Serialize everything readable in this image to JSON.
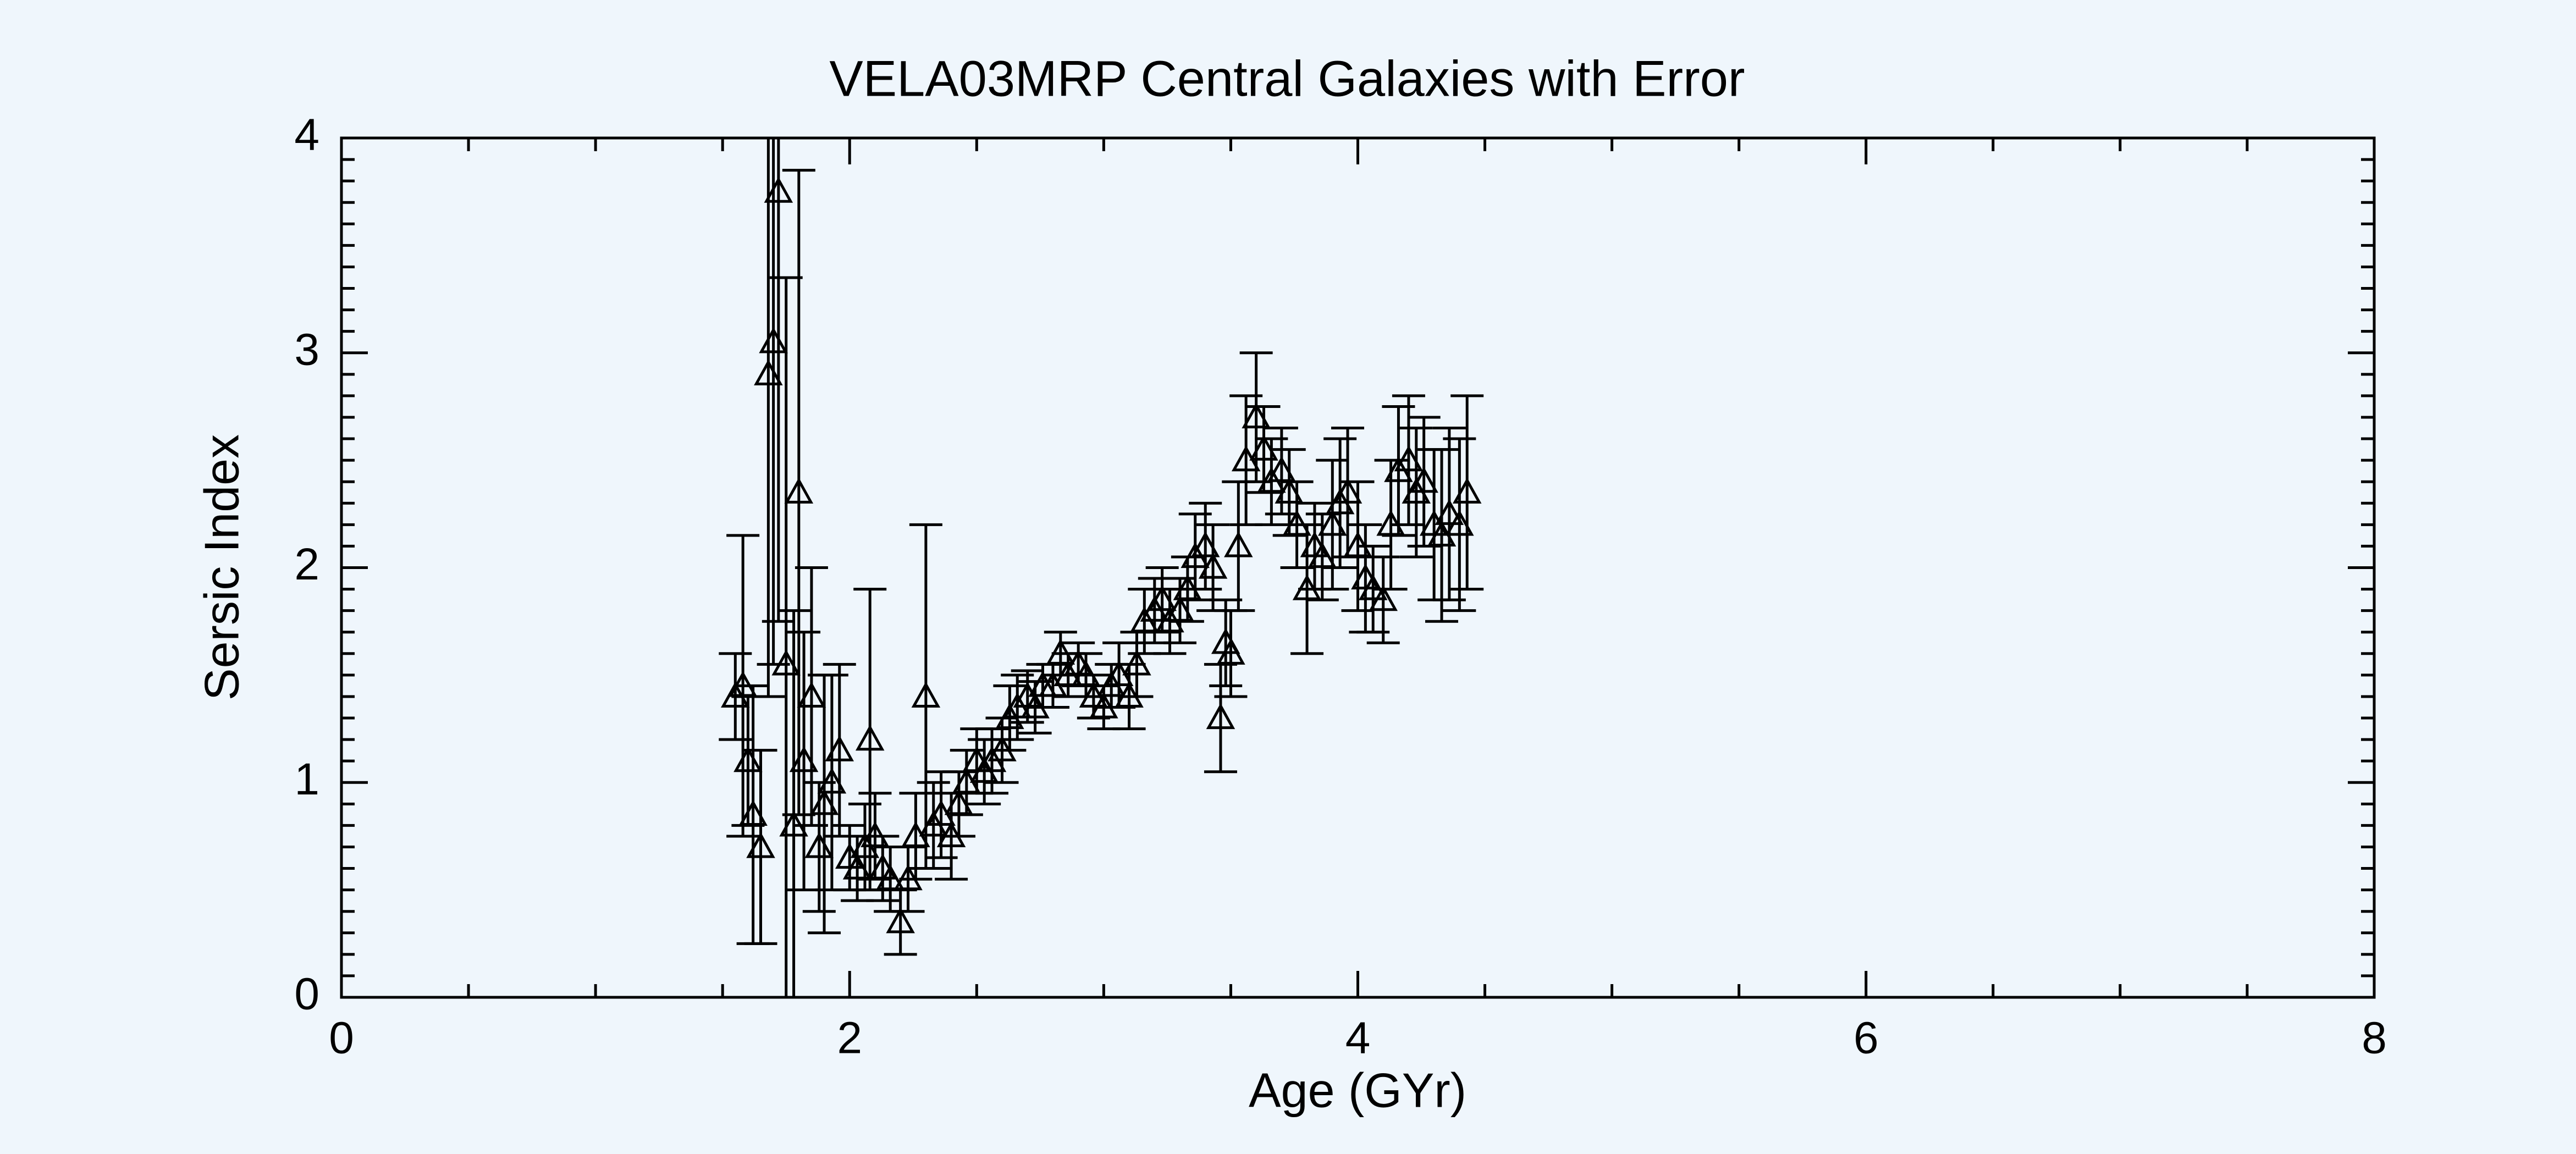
{
  "chart_data": {
    "type": "scatter",
    "title": "VELA03MRP Central Galaxies with Error",
    "x_label": "Age (GYr)",
    "y_label": "Sersic Index",
    "xlim": [
      0,
      8
    ],
    "ylim": [
      0,
      4
    ],
    "xticks": [
      0,
      2,
      4,
      6,
      8
    ],
    "yticks": [
      0,
      1,
      2,
      3,
      4
    ],
    "xminorticks": [
      0.5,
      1,
      1.5,
      2.5,
      3,
      3.5,
      4.5,
      5,
      5.5,
      6.5,
      7,
      7.5
    ],
    "yminorticks": [
      0.1,
      0.2,
      0.3,
      0.4,
      0.5,
      0.6,
      0.7,
      0.8,
      0.9,
      1.1,
      1.2,
      1.3,
      1.4,
      1.5,
      1.6,
      1.7,
      1.8,
      1.9,
      2.1,
      2.2,
      2.3,
      2.4,
      2.5,
      2.6,
      2.7,
      2.8,
      2.9,
      3.1,
      3.2,
      3.3,
      3.4,
      3.5,
      3.6,
      3.7,
      3.8,
      3.9
    ],
    "color": "#000000",
    "x": [
      1.55,
      1.58,
      1.6,
      1.62,
      1.65,
      1.68,
      1.7,
      1.72,
      1.75,
      1.78,
      1.8,
      1.82,
      1.85,
      1.88,
      1.9,
      1.93,
      1.96,
      2.0,
      2.03,
      2.06,
      2.08,
      2.1,
      2.13,
      2.16,
      2.2,
      2.23,
      2.26,
      2.3,
      2.33,
      2.36,
      2.4,
      2.43,
      2.46,
      2.5,
      2.53,
      2.56,
      2.6,
      2.63,
      2.66,
      2.7,
      2.73,
      2.76,
      2.8,
      2.83,
      2.86,
      2.9,
      2.93,
      2.96,
      3.0,
      3.03,
      3.06,
      3.1,
      3.13,
      3.16,
      3.2,
      3.23,
      3.26,
      3.3,
      3.33,
      3.36,
      3.4,
      3.43,
      3.46,
      3.48,
      3.5,
      3.53,
      3.56,
      3.6,
      3.63,
      3.66,
      3.7,
      3.73,
      3.76,
      3.8,
      3.83,
      3.86,
      3.9,
      3.93,
      3.96,
      4.0,
      4.03,
      4.06,
      4.1,
      4.13,
      4.16,
      4.2,
      4.23,
      4.26,
      4.3,
      4.33,
      4.36,
      4.4,
      4.43
    ],
    "values": [
      1.4,
      1.45,
      1.1,
      0.85,
      0.7,
      2.9,
      3.05,
      3.75,
      1.55,
      0.8,
      2.35,
      1.1,
      1.4,
      0.7,
      0.9,
      1.0,
      1.15,
      0.65,
      0.6,
      0.7,
      1.2,
      0.75,
      0.6,
      0.55,
      0.35,
      0.55,
      0.75,
      1.4,
      0.8,
      0.85,
      0.75,
      0.9,
      1.0,
      1.1,
      1.05,
      1.1,
      1.15,
      1.3,
      1.35,
      1.4,
      1.35,
      1.45,
      1.45,
      1.6,
      1.5,
      1.55,
      1.5,
      1.4,
      1.35,
      1.45,
      1.5,
      1.4,
      1.55,
      1.75,
      1.8,
      1.85,
      1.75,
      1.8,
      1.9,
      2.05,
      2.1,
      2.0,
      1.3,
      1.65,
      1.6,
      2.1,
      2.5,
      2.7,
      2.55,
      2.4,
      2.45,
      2.35,
      2.2,
      1.9,
      2.1,
      2.05,
      2.2,
      2.3,
      2.35,
      2.1,
      1.95,
      1.9,
      1.85,
      2.2,
      2.45,
      2.5,
      2.35,
      2.4,
      2.2,
      2.15,
      2.25,
      2.2,
      2.35
    ],
    "errors": [
      0.2,
      0.7,
      0.3,
      0.6,
      0.45,
      1.5,
      1.5,
      2.0,
      1.8,
      1.0,
      1.5,
      0.6,
      0.6,
      0.3,
      0.6,
      0.5,
      0.4,
      0.15,
      0.15,
      0.2,
      0.7,
      0.2,
      0.15,
      0.15,
      0.15,
      0.15,
      0.2,
      0.8,
      0.2,
      0.2,
      0.2,
      0.15,
      0.15,
      0.15,
      0.15,
      0.15,
      0.15,
      0.15,
      0.15,
      0.12,
      0.12,
      0.1,
      0.1,
      0.1,
      0.1,
      0.1,
      0.1,
      0.1,
      0.1,
      0.1,
      0.15,
      0.15,
      0.15,
      0.15,
      0.15,
      0.15,
      0.15,
      0.15,
      0.15,
      0.2,
      0.2,
      0.2,
      0.25,
      0.2,
      0.2,
      0.3,
      0.3,
      0.3,
      0.2,
      0.2,
      0.2,
      0.2,
      0.2,
      0.3,
      0.2,
      0.2,
      0.3,
      0.3,
      0.3,
      0.3,
      0.25,
      0.2,
      0.2,
      0.3,
      0.3,
      0.3,
      0.3,
      0.3,
      0.35,
      0.4,
      0.4,
      0.4,
      0.45
    ]
  }
}
